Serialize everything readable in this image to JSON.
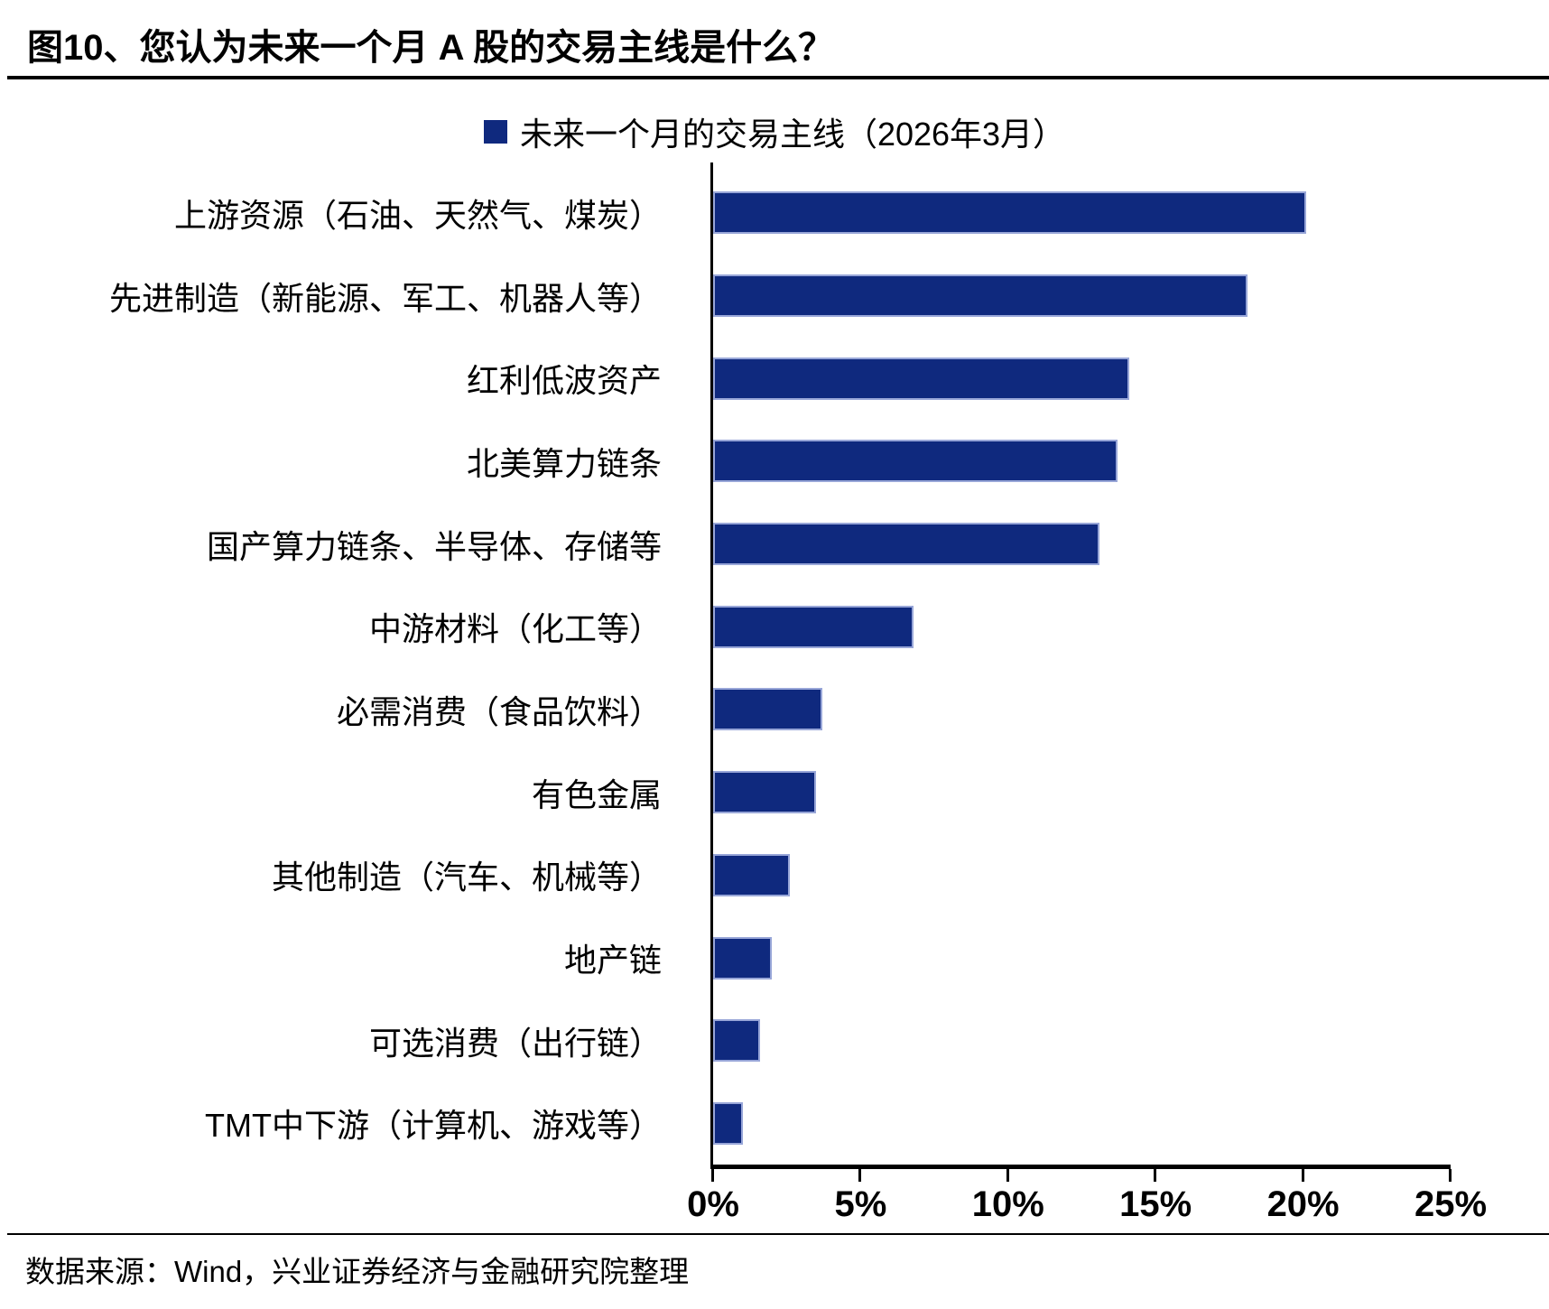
{
  "header": {
    "title": "图10、您认为未来一个月 A 股的交易主线是什么？"
  },
  "footer": {
    "source": "数据来源：Wind，兴业证券经济与金融研究院整理"
  },
  "chart_data": {
    "type": "bar",
    "orientation": "horizontal",
    "title": "您认为未来一个月 A 股的交易主线是什么",
    "legend": [
      "未来一个月的交易主线（2026年3月）"
    ],
    "legend_position": "top-center",
    "categories": [
      "上游资源（石油、天然气、煤炭）",
      "先进制造（新能源、军工、机器人等）",
      "红利低波资产",
      "北美算力链条",
      "国产算力链条、半导体、存储等",
      "中游材料（化工等）",
      "必需消费（食品饮料）",
      "有色金属",
      "其他制造（汽车、机械等）",
      "地产链",
      "可选消费（出行链）",
      "TMT中下游（计算机、游戏等）"
    ],
    "values": [
      20.1,
      18.1,
      14.1,
      13.7,
      13.1,
      6.8,
      3.7,
      3.5,
      2.6,
      2.0,
      1.6,
      1.0
    ],
    "value_unit": "%",
    "xlim": [
      0,
      25
    ],
    "x_tick_labels": [
      "0%",
      "5%",
      "10%",
      "15%",
      "20%",
      "25%"
    ],
    "grid": false,
    "bar_color": "#0f297e",
    "bar_border_color": "#98a6d8",
    "axis_color": "#000000"
  }
}
